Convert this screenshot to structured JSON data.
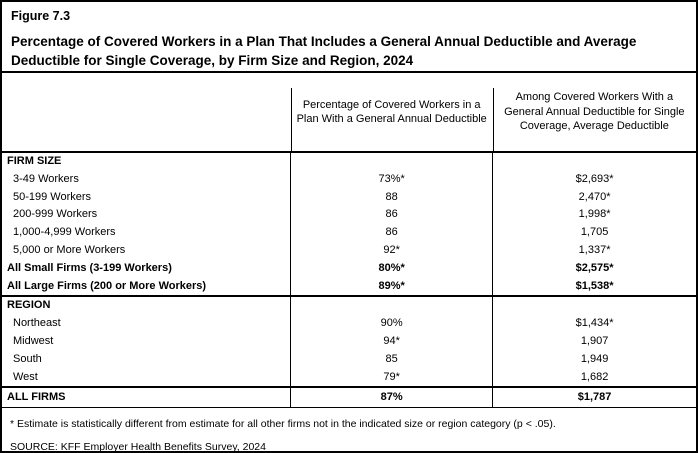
{
  "figure": {
    "label": "Figure 7.3",
    "title": "Percentage of Covered Workers in a Plan That Includes a General Annual Deductible and Average Deductible for Single Coverage, by Firm Size and Region, 2024"
  },
  "table": {
    "columns": [
      {
        "header": ""
      },
      {
        "header": "Percentage of Covered Workers in a Plan With a General Annual Deductible"
      },
      {
        "header": "Among Covered Workers With a General Annual Deductible for Single Coverage, Average Deductible"
      }
    ],
    "rows": [
      {
        "label": "FIRM SIZE",
        "pct": "",
        "avg": "",
        "type": "section"
      },
      {
        "label": "3-49 Workers",
        "pct": "73%*",
        "avg": "$2,693*",
        "type": "data"
      },
      {
        "label": "50-199 Workers",
        "pct": "88",
        "avg": "2,470*",
        "type": "data"
      },
      {
        "label": "200-999 Workers",
        "pct": "86",
        "avg": "1,998*",
        "type": "data"
      },
      {
        "label": "1,000-4,999 Workers",
        "pct": "86",
        "avg": "1,705",
        "type": "data"
      },
      {
        "label": "5,000 or More Workers",
        "pct": "92*",
        "avg": "1,337*",
        "type": "data"
      },
      {
        "label": "All Small Firms (3-199 Workers)",
        "pct": "80%*",
        "avg": "$2,575*",
        "type": "subtotal"
      },
      {
        "label": "All Large Firms (200 or More Workers)",
        "pct": "89%*",
        "avg": "$1,538*",
        "type": "subtotal"
      },
      {
        "label": "REGION",
        "pct": "",
        "avg": "",
        "type": "section"
      },
      {
        "label": "Northeast",
        "pct": "90%",
        "avg": "$1,434*",
        "type": "data"
      },
      {
        "label": "Midwest",
        "pct": "94*",
        "avg": "1,907",
        "type": "data"
      },
      {
        "label": "South",
        "pct": "85",
        "avg": "1,949",
        "type": "data"
      },
      {
        "label": "West",
        "pct": "79*",
        "avg": "1,682",
        "type": "data"
      },
      {
        "label": "ALL FIRMS",
        "pct": "87%",
        "avg": "$1,787",
        "type": "total"
      }
    ]
  },
  "footnote": "* Estimate is statistically different from estimate for all other firms not in the indicated size or region category (p < .05).",
  "source": "SOURCE: KFF Employer Health Benefits Survey, 2024",
  "colors": {
    "border": "#000000",
    "background": "#ffffff",
    "text": "#000000"
  }
}
